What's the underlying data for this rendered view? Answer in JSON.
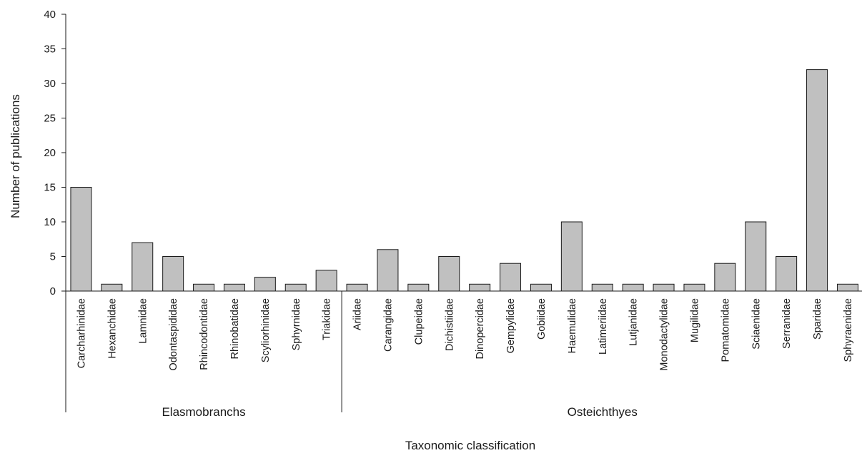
{
  "chart_data": {
    "type": "bar",
    "xlabel": "Taxonomic classification",
    "ylabel": "Number of publications",
    "ylim": [
      0,
      40
    ],
    "yticks": [
      0,
      5,
      10,
      15,
      20,
      25,
      30,
      35,
      40
    ],
    "categories": [
      "Carcharhinidae",
      "Hexanchidae",
      "Lamnidae",
      "Odontaspididae",
      "Rhincodontidae",
      "Rhinobatidae",
      "Scyliorhinidae",
      "Sphyrnidae",
      "Triakidae",
      "Ariidae",
      "Carangidae",
      "Clupeidae",
      "Dichistiidae",
      "Dinopercidae",
      "Gempylidae",
      "Gobiidae",
      "Haemulidae",
      "Latimeriidae",
      "Lutjanidae",
      "Monodactylidae",
      "Mugilidae",
      "Pomatomidae",
      "Sciaenidae",
      "Serranidae",
      "Sparidae",
      "Sphyraenidae"
    ],
    "values": [
      15,
      1,
      7,
      5,
      1,
      1,
      2,
      1,
      3,
      1,
      6,
      1,
      5,
      1,
      4,
      1,
      10,
      1,
      1,
      1,
      1,
      4,
      10,
      5,
      32,
      1
    ],
    "groups": [
      {
        "name": "Elasmobranchs",
        "start": 0,
        "end": 8
      },
      {
        "name": "Osteichthyes",
        "start": 9,
        "end": 25
      }
    ],
    "bar_color": "#c0c0c0",
    "bar_edge_color": "#1a1a1a",
    "grid": false,
    "legend": "none"
  }
}
